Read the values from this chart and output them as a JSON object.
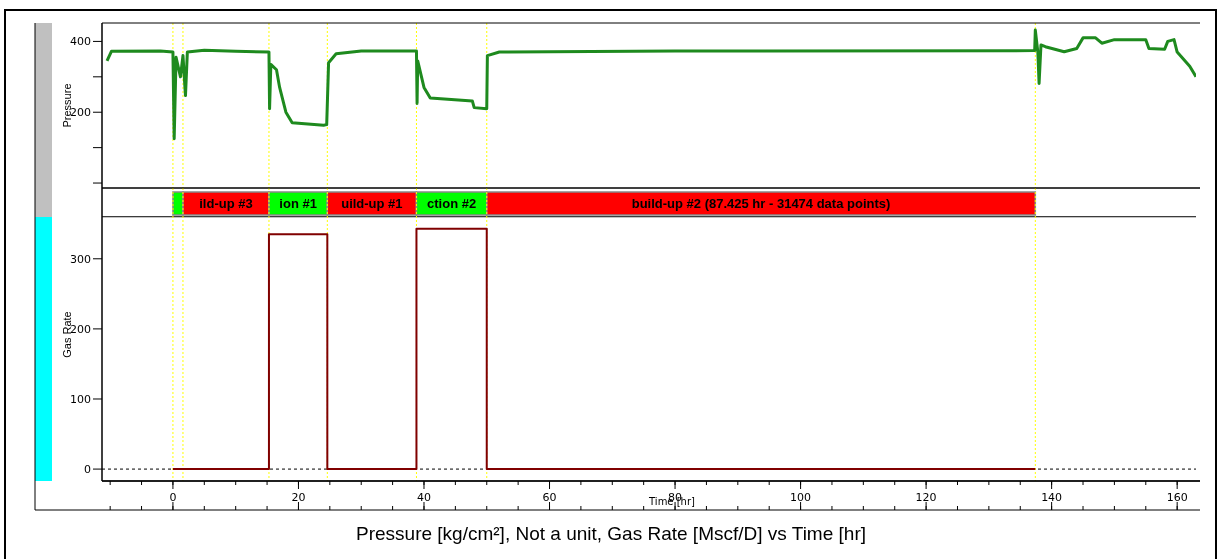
{
  "chart_data": [
    {
      "type": "line",
      "ylabel": "Pressure",
      "xlim": [
        -11.3,
        163
      ],
      "ylim": [
        -14,
        452
      ],
      "yticks": [
        {
          "value": 0,
          "label": null
        },
        {
          "value": 100,
          "label": null
        },
        200,
        {
          "value": 300,
          "label": null
        },
        400
      ],
      "tick_labels": "y",
      "grid": false,
      "series": [
        {
          "color": "#1e8a1e",
          "x": [
            -10.5,
            -9.8,
            -2,
            0,
            0.2,
            0.5,
            1.2,
            1.6,
            2.0,
            2.3,
            5,
            10,
            15.3,
            15.4,
            15.6,
            16.5,
            17,
            18,
            19,
            24,
            24.5,
            24.8,
            26,
            30,
            38.8,
            38.9,
            39,
            40,
            41,
            47.7,
            48,
            50,
            50.1,
            52,
            80,
            137.3,
            137.4,
            137.8,
            138,
            138.3,
            139,
            142,
            144,
            145,
            147,
            148,
            150,
            155,
            155.5,
            158,
            158.5,
            159.5,
            160,
            162,
            163
          ],
          "values": [
            345,
            372,
            373,
            370,
            125,
            355,
            300,
            360,
            247,
            370,
            375,
            372,
            370,
            210,
            335,
            320,
            270,
            200,
            170,
            163,
            165,
            340,
            365,
            373,
            373,
            225,
            345,
            270,
            240,
            232,
            213,
            210,
            360,
            370,
            373,
            374,
            432,
            370,
            281,
            390,
            385,
            371,
            380,
            410,
            410,
            395,
            405,
            405,
            380,
            378,
            400,
            405,
            370,
            330,
            300
          ]
        }
      ],
      "ref_lines": [
        {
          "axis": "x",
          "value": 0,
          "color": "#ffff00",
          "line_style": "dotted"
        },
        {
          "axis": "x",
          "value": 1.6,
          "color": "#ffff00",
          "line_style": "dotted"
        },
        {
          "axis": "x",
          "value": 15.3,
          "color": "#ffff00",
          "line_style": "dotted"
        },
        {
          "axis": "x",
          "value": 24.6,
          "color": "#ffff00",
          "line_style": "dotted"
        },
        {
          "axis": "x",
          "value": 38.8,
          "color": "#ffff00",
          "line_style": "dotted"
        },
        {
          "axis": "x",
          "value": 50,
          "color": "#ffff00",
          "line_style": "dotted"
        },
        {
          "axis": "x",
          "value": 137.4,
          "color": "#ffff00",
          "line_style": "dotted"
        }
      ]
    },
    {
      "type": "line",
      "title": "Pressure [kg/cm²], Not a unit, Gas Rate [Mscf/D] vs Time [hr]",
      "ylabel": "Gas Rate",
      "xlabel": "Time [hr]",
      "xlim": [
        -11.3,
        163
      ],
      "xticks": [
        0,
        20,
        40,
        60,
        80,
        100,
        120,
        140,
        160
      ],
      "ylim": [
        -17,
        401
      ],
      "yticks": [
        0,
        100,
        200,
        300
      ],
      "grid": false,
      "series": [
        {
          "color": "#800000",
          "x": [
            0,
            15.3,
            15.3,
            24.6,
            24.6,
            38.8,
            38.8,
            50,
            50,
            137.4
          ],
          "values": [
            0,
            0,
            335,
            335,
            0,
            0,
            343,
            343,
            0,
            0
          ]
        }
      ],
      "bands": [
        {
          "axis": "x",
          "from": 0,
          "to": 1.6,
          "label": null,
          "color": "#00ff00"
        },
        {
          "axis": "x",
          "from": 1.6,
          "to": 15.3,
          "label": "ild-up #3",
          "color": "#ff0000"
        },
        {
          "axis": "x",
          "from": 15.3,
          "to": 24.6,
          "label": "ion #1",
          "color": "#00ff00"
        },
        {
          "axis": "x",
          "from": 24.6,
          "to": 38.8,
          "label": "uild-up #1",
          "color": "#ff0000"
        },
        {
          "axis": "x",
          "from": 38.8,
          "to": 50,
          "label": "ction #2",
          "color": "#00ff00"
        },
        {
          "axis": "x",
          "from": 50,
          "to": 137.4,
          "label": "build-up #2 (87.425 hr - 31474 data points)",
          "color": "#ff0000"
        }
      ],
      "ref_lines": [
        {
          "axis": "y",
          "value": 0,
          "color": "#000000",
          "line_style": "dashed"
        },
        {
          "axis": "y",
          "value": 360,
          "color": "#000000",
          "line_style": "solid"
        },
        {
          "axis": "x",
          "value": 0,
          "color": "#ffff00",
          "line_style": "dotted"
        },
        {
          "axis": "x",
          "value": 1.6,
          "color": "#ffff00",
          "line_style": "dotted"
        },
        {
          "axis": "x",
          "value": 15.3,
          "color": "#ffff00",
          "line_style": "dotted"
        },
        {
          "axis": "x",
          "value": 24.6,
          "color": "#ffff00",
          "line_style": "dotted"
        },
        {
          "axis": "x",
          "value": 38.8,
          "color": "#ffff00",
          "line_style": "dotted"
        },
        {
          "axis": "x",
          "value": 50,
          "color": "#ffff00",
          "line_style": "dotted"
        },
        {
          "axis": "x",
          "value": 137.4,
          "color": "#ffff00",
          "line_style": "dotted"
        }
      ]
    }
  ]
}
